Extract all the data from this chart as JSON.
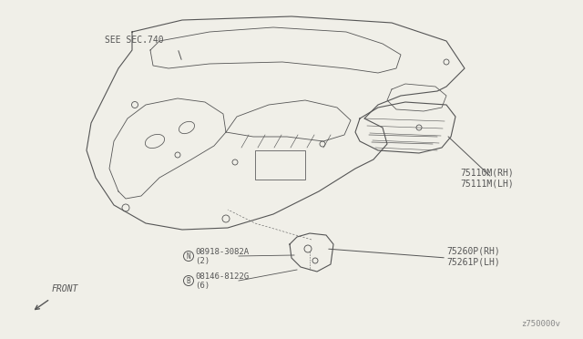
{
  "bg_color": "#f0efe8",
  "line_color": "#555555",
  "labels": {
    "see_sec": "SEE SEC.740",
    "front": "FRONT",
    "part1a": "75110M(RH)",
    "part1b": "75111M(LH)",
    "part2a": "75260P(RH)",
    "part2b": "75261P(LH)",
    "nut_label": "08918-3082A",
    "nut_letter": "N",
    "nut_qty": "(2)",
    "bolt_label": "08146-8122G",
    "bolt_letter": "B",
    "bolt_qty": "(6)"
  },
  "label_fontsize": 7,
  "small_fontsize": 6.5,
  "diag_num": "z750000v"
}
